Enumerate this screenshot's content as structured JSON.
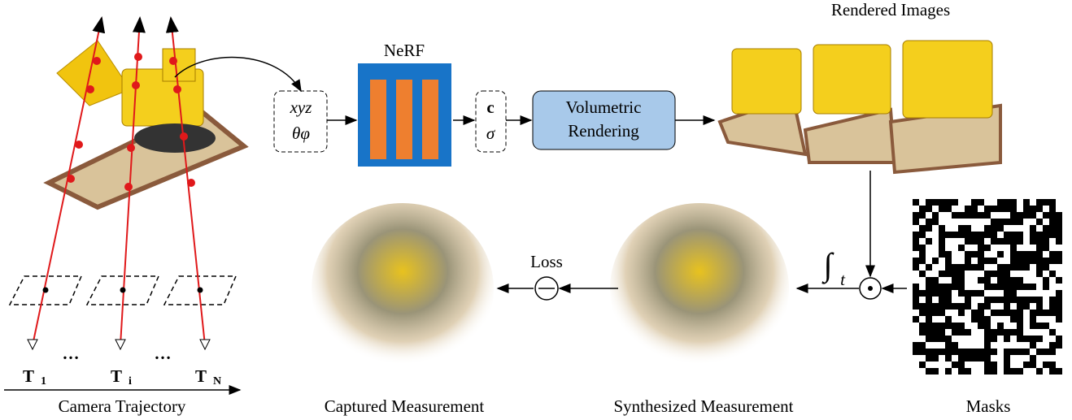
{
  "header": {
    "rendered_images": "Rendered Images",
    "nerf": "NeRF"
  },
  "inputs": {
    "line1": "xyz",
    "line2": "θφ"
  },
  "outputs": {
    "line1": "c",
    "line2": "σ"
  },
  "renderer": {
    "line1": "Volumetric",
    "line2": "Rendering"
  },
  "loss": "Loss",
  "integral": {
    "symbol": "∫",
    "sub": "t"
  },
  "cameras": [
    {
      "base": "T",
      "sub": "1"
    },
    {
      "base": "T",
      "sub": "i"
    },
    {
      "base": "T",
      "sub": "N"
    }
  ],
  "ellipses": [
    "…",
    "…"
  ],
  "captions": {
    "camera": "Camera Trajectory",
    "captured": "Captured Measurement",
    "synthesized": "Synthesized Measurement",
    "masks": "Masks"
  }
}
